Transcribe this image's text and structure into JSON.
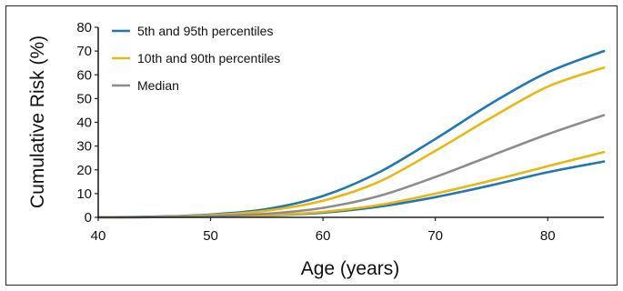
{
  "chart_data": {
    "type": "line",
    "xlabel": "Age (years)",
    "ylabel": "Cumulative Risk (%)",
    "xlim": [
      40,
      85
    ],
    "ylim": [
      0,
      80
    ],
    "xticks": [
      40,
      50,
      60,
      70,
      80
    ],
    "yticks": [
      0,
      10,
      20,
      30,
      40,
      50,
      60,
      70,
      80
    ],
    "grid": false,
    "legend_position": "top-left",
    "x": [
      40,
      45,
      50,
      55,
      60,
      65,
      70,
      75,
      80,
      85
    ],
    "series": [
      {
        "name": "5th and 95th percentiles",
        "color": "#1f77b4",
        "legend": true,
        "values": [
          0,
          0.3,
          1.2,
          3.5,
          9,
          19,
          33,
          48,
          61,
          70
        ]
      },
      {
        "name": "",
        "color": "#1f77b4",
        "legend": false,
        "values": [
          0,
          0.1,
          0.3,
          0.8,
          2,
          4.5,
          8.5,
          13.5,
          19,
          23.5
        ]
      },
      {
        "name": "10th and 90th percentiles",
        "color": "#e8b810",
        "legend": true,
        "values": [
          0,
          0.2,
          0.9,
          2.8,
          7,
          15,
          28,
          42,
          55,
          63
        ]
      },
      {
        "name": "",
        "color": "#e8b810",
        "legend": false,
        "values": [
          0,
          0.1,
          0.3,
          0.9,
          2.3,
          5.2,
          10,
          15.5,
          21.5,
          27.5
        ]
      },
      {
        "name": "Median",
        "color": "#8c8c8c",
        "legend": true,
        "values": [
          0,
          0.1,
          0.5,
          1.5,
          4,
          9,
          17,
          26,
          35,
          43
        ]
      }
    ]
  }
}
